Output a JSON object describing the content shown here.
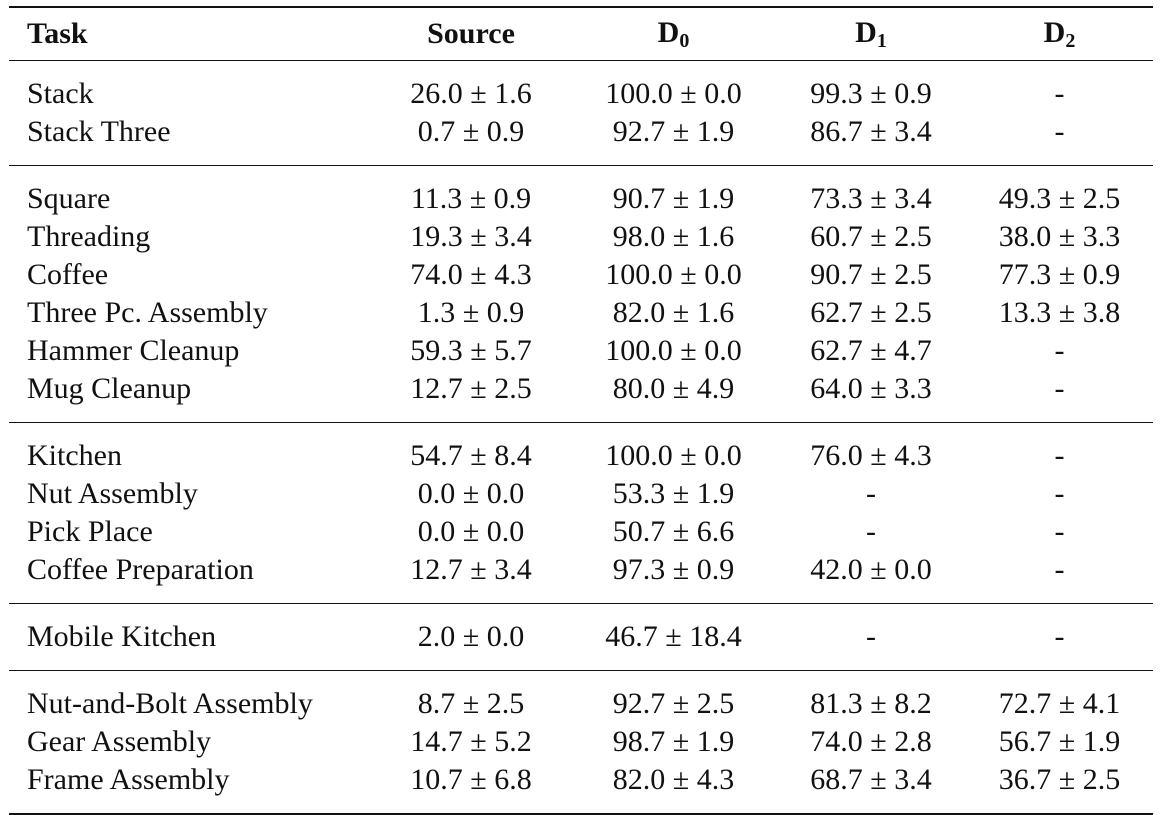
{
  "header": {
    "task": "Task",
    "source": "Source",
    "d0": {
      "base": "D",
      "sub": "0"
    },
    "d1": {
      "base": "D",
      "sub": "1"
    },
    "d2": {
      "base": "D",
      "sub": "2"
    }
  },
  "groups": [
    {
      "rows": [
        {
          "task": "Stack",
          "source": "26.0 ± 1.6",
          "d0": "100.0 ± 0.0",
          "d1": "99.3 ± 0.9",
          "d2": "-"
        },
        {
          "task": "Stack Three",
          "source": "0.7 ± 0.9",
          "d0": "92.7 ± 1.9",
          "d1": "86.7 ± 3.4",
          "d2": "-"
        }
      ]
    },
    {
      "rows": [
        {
          "task": "Square",
          "source": "11.3 ± 0.9",
          "d0": "90.7 ± 1.9",
          "d1": "73.3 ± 3.4",
          "d2": "49.3 ± 2.5"
        },
        {
          "task": "Threading",
          "source": "19.3 ± 3.4",
          "d0": "98.0 ± 1.6",
          "d1": "60.7 ± 2.5",
          "d2": "38.0 ± 3.3"
        },
        {
          "task": "Coffee",
          "source": "74.0 ± 4.3",
          "d0": "100.0 ± 0.0",
          "d1": "90.7 ± 2.5",
          "d2": "77.3 ± 0.9"
        },
        {
          "task": "Three Pc. Assembly",
          "source": "1.3 ± 0.9",
          "d0": "82.0 ± 1.6",
          "d1": "62.7 ± 2.5",
          "d2": "13.3 ± 3.8"
        },
        {
          "task": "Hammer Cleanup",
          "source": "59.3 ± 5.7",
          "d0": "100.0 ± 0.0",
          "d1": "62.7 ± 4.7",
          "d2": "-"
        },
        {
          "task": "Mug Cleanup",
          "source": "12.7 ± 2.5",
          "d0": "80.0 ± 4.9",
          "d1": "64.0 ± 3.3",
          "d2": "-"
        }
      ]
    },
    {
      "rows": [
        {
          "task": "Kitchen",
          "source": "54.7 ± 8.4",
          "d0": "100.0 ± 0.0",
          "d1": "76.0 ± 4.3",
          "d2": "-"
        },
        {
          "task": "Nut Assembly",
          "source": "0.0 ± 0.0",
          "d0": "53.3 ± 1.9",
          "d1": "-",
          "d2": "-"
        },
        {
          "task": "Pick Place",
          "source": "0.0 ± 0.0",
          "d0": "50.7 ± 6.6",
          "d1": "-",
          "d2": "-"
        },
        {
          "task": "Coffee Preparation",
          "source": "12.7 ± 3.4",
          "d0": "97.3 ± 0.9",
          "d1": "42.0 ± 0.0",
          "d2": "-"
        }
      ]
    },
    {
      "rows": [
        {
          "task": "Mobile Kitchen",
          "source": "2.0 ± 0.0",
          "d0": "46.7 ± 18.4",
          "d1": "-",
          "d2": "-"
        }
      ]
    },
    {
      "rows": [
        {
          "task": "Nut-and-Bolt Assembly",
          "source": "8.7 ± 2.5",
          "d0": "92.7 ± 2.5",
          "d1": "81.3 ± 8.2",
          "d2": "72.7 ± 4.1"
        },
        {
          "task": "Gear Assembly",
          "source": "14.7 ± 5.2",
          "d0": "98.7 ± 1.9",
          "d1": "74.0 ± 2.8",
          "d2": "56.7 ± 1.9"
        },
        {
          "task": "Frame Assembly",
          "source": "10.7 ± 6.8",
          "d0": "82.0 ± 4.3",
          "d1": "68.7 ± 3.4",
          "d2": "36.7 ± 2.5"
        }
      ]
    }
  ]
}
